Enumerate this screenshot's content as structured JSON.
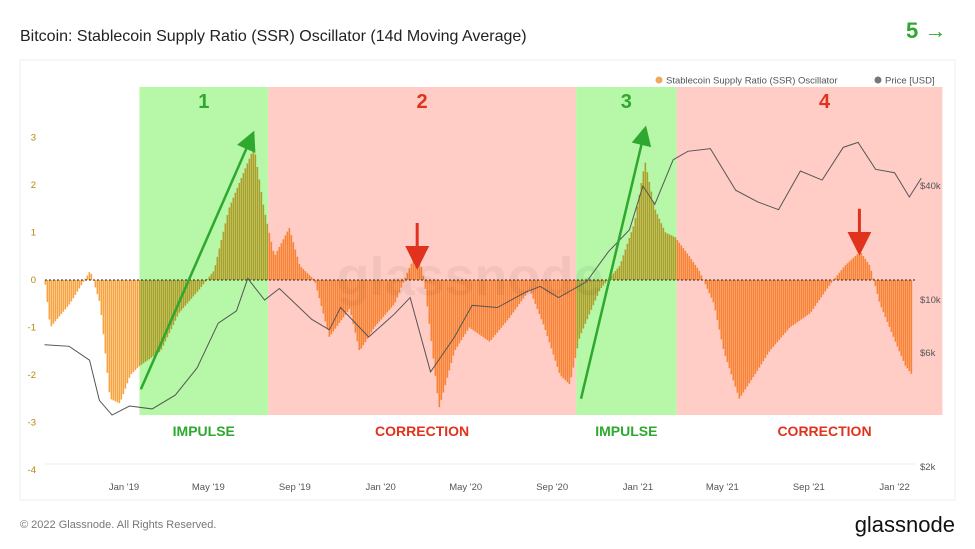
{
  "title": "Bitcoin: Stablecoin Supply Ratio (SSR) Oscillator (14d Moving Average)",
  "top_right_annotation": "5 →",
  "footer": {
    "copyright": "© 2022 Glassnode. All Rights Reserved.",
    "logo": "glassnode"
  },
  "watermark": "glassnode",
  "colors": {
    "ssr": "#f7931e",
    "price": "#555555",
    "impulse_zone": "#b6f7a8",
    "correction_zone": "#ffcdc6",
    "impulse_text": "#2ea82e",
    "correction_text": "#e0321c"
  },
  "chart_data": {
    "type": "bar",
    "title": "Bitcoin: Stablecoin Supply Ratio (SSR) Oscillator (14d Moving Average)",
    "legend": {
      "placement": "top-right",
      "entries": [
        "Stablecoin Supply Ratio (SSR) Oscillator",
        "Price [USD]"
      ]
    },
    "x_ticks": [
      "Jan '19",
      "May '19",
      "Sep '19",
      "Jan '20",
      "May '20",
      "Sep '20",
      "Jan '21",
      "May '21",
      "Sep '21",
      "Jan '22"
    ],
    "x_tick_dates": [
      "2019-01-01",
      "2019-05-01",
      "2019-09-01",
      "2020-01-01",
      "2020-05-01",
      "2020-09-01",
      "2021-01-01",
      "2021-05-01",
      "2021-09-01",
      "2022-01-01"
    ],
    "y_left": {
      "ticks": [
        "3",
        "2",
        "1",
        "0",
        "-1",
        "-2",
        "-3",
        "-4"
      ],
      "range": [
        -4,
        4
      ]
    },
    "y_right": {
      "ticks": [
        "$40k",
        "$10k",
        "$6k",
        "$2k"
      ],
      "tick_values": [
        40000,
        10000,
        6000,
        2000
      ],
      "scale": "log"
    },
    "series": [
      {
        "name": "Stablecoin Supply Ratio (SSR) Oscillator",
        "points": [
          [
            "2018-09-10",
            -0.1
          ],
          [
            "2018-09-17",
            -1.0
          ],
          [
            "2018-10-15",
            -0.5
          ],
          [
            "2018-11-13",
            0.2
          ],
          [
            "2018-11-27",
            -0.5
          ],
          [
            "2018-12-11",
            -2.5
          ],
          [
            "2018-12-25",
            -2.6
          ],
          [
            "2019-01-09",
            -2.0
          ],
          [
            "2019-01-23",
            -1.8
          ],
          [
            "2019-02-21",
            -1.5
          ],
          [
            "2019-03-19",
            -0.7
          ],
          [
            "2019-04-17",
            -0.2
          ],
          [
            "2019-05-08",
            0.2
          ],
          [
            "2019-05-29",
            1.5
          ],
          [
            "2019-06-20",
            2.3
          ],
          [
            "2019-07-04",
            2.8
          ],
          [
            "2019-07-18",
            1.5
          ],
          [
            "2019-08-02",
            0.5
          ],
          [
            "2019-08-23",
            1.1
          ],
          [
            "2019-09-07",
            0.3
          ],
          [
            "2019-09-28",
            0.0
          ],
          [
            "2019-10-19",
            -1.2
          ],
          [
            "2019-11-17",
            -0.6
          ],
          [
            "2019-12-01",
            -1.5
          ],
          [
            "2019-12-22",
            -1.0
          ],
          [
            "2020-01-20",
            -0.5
          ],
          [
            "2020-02-11",
            0.3
          ],
          [
            "2020-02-22",
            0.6
          ],
          [
            "2020-03-02",
            0.0
          ],
          [
            "2020-03-23",
            -2.7
          ],
          [
            "2020-04-14",
            -1.5
          ],
          [
            "2020-05-05",
            -1.0
          ],
          [
            "2020-06-03",
            -1.3
          ],
          [
            "2020-07-01",
            -0.8
          ],
          [
            "2020-07-30",
            -0.2
          ],
          [
            "2020-08-20",
            -1.0
          ],
          [
            "2020-09-11",
            -2.0
          ],
          [
            "2020-09-25",
            -2.2
          ],
          [
            "2020-10-09",
            -1.2
          ],
          [
            "2020-11-07",
            -0.2
          ],
          [
            "2020-12-05",
            0.3
          ],
          [
            "2020-12-26",
            1.2
          ],
          [
            "2021-01-10",
            2.5
          ],
          [
            "2021-01-24",
            1.5
          ],
          [
            "2021-02-08",
            1.0
          ],
          [
            "2021-02-22",
            0.9
          ],
          [
            "2021-03-14",
            0.5
          ],
          [
            "2021-03-28",
            0.2
          ],
          [
            "2021-04-18",
            -0.5
          ],
          [
            "2021-05-02",
            -1.5
          ],
          [
            "2021-05-24",
            -2.5
          ],
          [
            "2021-06-15",
            -2.0
          ],
          [
            "2021-07-06",
            -1.5
          ],
          [
            "2021-08-04",
            -1.0
          ],
          [
            "2021-09-02",
            -0.7
          ],
          [
            "2021-09-30",
            -0.1
          ],
          [
            "2021-10-21",
            0.3
          ],
          [
            "2021-11-12",
            0.6
          ],
          [
            "2021-11-26",
            0.3
          ],
          [
            "2021-12-10",
            -0.5
          ],
          [
            "2022-01-01",
            -1.3
          ],
          [
            "2022-01-15",
            -1.8
          ],
          [
            "2022-01-25",
            -2.0
          ]
        ]
      },
      {
        "name": "Price [USD]",
        "points": [
          [
            "2018-09-10",
            6500
          ],
          [
            "2018-10-15",
            6400
          ],
          [
            "2018-11-13",
            5600
          ],
          [
            "2018-11-27",
            3800
          ],
          [
            "2018-12-15",
            3300
          ],
          [
            "2019-01-09",
            3600
          ],
          [
            "2019-02-10",
            3500
          ],
          [
            "2019-03-15",
            4000
          ],
          [
            "2019-04-15",
            5200
          ],
          [
            "2019-05-15",
            8000
          ],
          [
            "2019-06-10",
            9000
          ],
          [
            "2019-06-26",
            13000
          ],
          [
            "2019-07-20",
            10000
          ],
          [
            "2019-08-10",
            11500
          ],
          [
            "2019-09-25",
            8300
          ],
          [
            "2019-10-20",
            7500
          ],
          [
            "2019-11-05",
            9300
          ],
          [
            "2019-12-15",
            7000
          ],
          [
            "2020-01-20",
            8700
          ],
          [
            "2020-02-12",
            10300
          ],
          [
            "2020-03-12",
            5000
          ],
          [
            "2020-04-15",
            7000
          ],
          [
            "2020-05-10",
            9500
          ],
          [
            "2020-06-15",
            9300
          ],
          [
            "2020-07-25",
            11000
          ],
          [
            "2020-08-15",
            11800
          ],
          [
            "2020-09-10",
            10300
          ],
          [
            "2020-10-20",
            12500
          ],
          [
            "2020-11-20",
            18000
          ],
          [
            "2020-12-20",
            23500
          ],
          [
            "2021-01-08",
            40000
          ],
          [
            "2021-01-25",
            32000
          ],
          [
            "2021-02-20",
            55000
          ],
          [
            "2021-03-13",
            61000
          ],
          [
            "2021-04-14",
            63000
          ],
          [
            "2021-05-20",
            38000
          ],
          [
            "2021-06-20",
            33000
          ],
          [
            "2021-07-20",
            30000
          ],
          [
            "2021-08-20",
            48000
          ],
          [
            "2021-09-20",
            43000
          ],
          [
            "2021-10-20",
            64000
          ],
          [
            "2021-11-10",
            68000
          ],
          [
            "2021-12-05",
            49000
          ],
          [
            "2022-01-01",
            47000
          ],
          [
            "2022-01-22",
            35000
          ],
          [
            "2022-02-08",
            44000
          ]
        ]
      }
    ],
    "zones": [
      {
        "label": "1",
        "caption": "IMPULSE",
        "kind": "impulse",
        "from": "2019-01-23",
        "to": "2019-07-25"
      },
      {
        "label": "2",
        "caption": "CORRECTION",
        "kind": "correction",
        "from": "2019-07-25",
        "to": "2020-10-05"
      },
      {
        "label": "3",
        "caption": "IMPULSE",
        "kind": "impulse",
        "from": "2020-10-05",
        "to": "2021-02-25"
      },
      {
        "label": "4",
        "caption": "CORRECTION",
        "kind": "correction",
        "from": "2021-02-25",
        "to": "2022-03-10"
      }
    ],
    "arrows": [
      {
        "kind": "up",
        "from": [
          "2019-01-25",
          -2.3
        ],
        "to": [
          "2019-07-01",
          3.0
        ]
      },
      {
        "kind": "up",
        "from": [
          "2020-10-12",
          -2.5
        ],
        "to": [
          "2021-01-10",
          3.1
        ]
      },
      {
        "kind": "down",
        "at": "2020-02-22",
        "top": 1.2,
        "bottom": 0.4
      },
      {
        "kind": "down",
        "at": "2021-11-12",
        "top": 1.5,
        "bottom": 0.7
      }
    ]
  }
}
